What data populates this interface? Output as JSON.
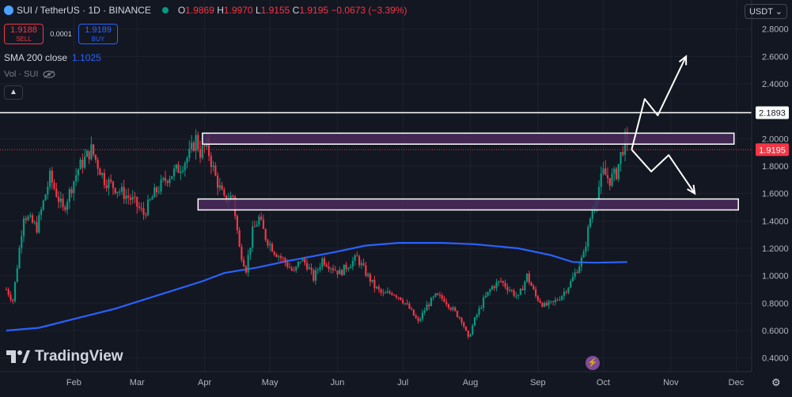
{
  "header": {
    "symbol": "SUI / TetherUS · 1D · BINANCE",
    "open_label": "O",
    "open": "1.9869",
    "high_label": "H",
    "high": "1.9970",
    "low_label": "L",
    "low": "1.9155",
    "close_label": "C",
    "close": "1.9195",
    "change": "−0.0673 (−3.39%)"
  },
  "trade": {
    "sell_price": "1.9188",
    "sell_label": "SELL",
    "spread": "0.0001",
    "buy_price": "1.9189",
    "buy_label": "BUY"
  },
  "indicators": {
    "sma_label": "SMA 200 close",
    "sma_value": "1.1025",
    "vol_label": "Vol · SUI"
  },
  "currency": "USDT",
  "brand": "TradingView",
  "colors": {
    "up": "#089981",
    "down": "#f23645",
    "sma": "#2962ff",
    "zone": "#4a2a5a",
    "bg": "#131722"
  },
  "chart_data": {
    "type": "candlestick",
    "ylim": [
      0.3,
      3.0
    ],
    "y_ticks": [
      "2.8000",
      "2.6000",
      "2.4000",
      "2.2000",
      "2.0000",
      "1.8000",
      "1.6000",
      "1.4000",
      "1.2000",
      "1.0000",
      "0.8000",
      "0.6000",
      "0.4000"
    ],
    "x_ticks": [
      "Feb",
      "Mar",
      "Apr",
      "May",
      "Jun",
      "Jul",
      "Aug",
      "Sep",
      "Oct",
      "Nov",
      "Dec"
    ],
    "x_tick_day": [
      31,
      60,
      91,
      121,
      152,
      182,
      213,
      244,
      274,
      305,
      335
    ],
    "close_path": [
      [
        0,
        0.9
      ],
      [
        3,
        0.82
      ],
      [
        8,
        1.45
      ],
      [
        14,
        1.35
      ],
      [
        20,
        1.72
      ],
      [
        26,
        1.48
      ],
      [
        33,
        1.78
      ],
      [
        39,
        1.92
      ],
      [
        45,
        1.7
      ],
      [
        52,
        1.62
      ],
      [
        58,
        1.55
      ],
      [
        63,
        1.45
      ],
      [
        68,
        1.6
      ],
      [
        74,
        1.72
      ],
      [
        79,
        1.78
      ],
      [
        84,
        1.88
      ],
      [
        87,
        2.0
      ],
      [
        89,
        1.9
      ],
      [
        92,
        1.95
      ],
      [
        96,
        1.72
      ],
      [
        100,
        1.55
      ],
      [
        104,
        1.58
      ],
      [
        107,
        1.2
      ],
      [
        110,
        1.05
      ],
      [
        113,
        1.32
      ],
      [
        116,
        1.42
      ],
      [
        119,
        1.28
      ],
      [
        123,
        1.18
      ],
      [
        128,
        1.1
      ],
      [
        132,
        1.02
      ],
      [
        135,
        1.12
      ],
      [
        138,
        1.08
      ],
      [
        141,
        0.98
      ],
      [
        145,
        1.12
      ],
      [
        149,
        1.07
      ],
      [
        153,
        1.02
      ],
      [
        157,
        1.08
      ],
      [
        161,
        1.13
      ],
      [
        165,
        1.02
      ],
      [
        169,
        0.92
      ],
      [
        173,
        0.86
      ],
      [
        177,
        0.88
      ],
      [
        181,
        0.84
      ],
      [
        185,
        0.76
      ],
      [
        189,
        0.66
      ],
      [
        193,
        0.78
      ],
      [
        197,
        0.85
      ],
      [
        201,
        0.83
      ],
      [
        205,
        0.75
      ],
      [
        209,
        0.68
      ],
      [
        212,
        0.54
      ],
      [
        215,
        0.68
      ],
      [
        219,
        0.82
      ],
      [
        223,
        0.92
      ],
      [
        227,
        0.96
      ],
      [
        231,
        0.9
      ],
      [
        235,
        0.84
      ],
      [
        239,
        1.0
      ],
      [
        243,
        0.85
      ],
      [
        247,
        0.78
      ],
      [
        251,
        0.8
      ],
      [
        255,
        0.86
      ],
      [
        259,
        0.95
      ],
      [
        262,
        1.05
      ],
      [
        265,
        1.15
      ],
      [
        268,
        1.42
      ],
      [
        271,
        1.6
      ],
      [
        274,
        1.75
      ],
      [
        277,
        1.7
      ],
      [
        280,
        1.75
      ],
      [
        282,
        1.88
      ],
      [
        284,
        1.99
      ],
      [
        285,
        1.92
      ]
    ],
    "sma_path": [
      [
        0,
        0.6
      ],
      [
        15,
        0.62
      ],
      [
        30,
        0.68
      ],
      [
        50,
        0.76
      ],
      [
        70,
        0.86
      ],
      [
        90,
        0.96
      ],
      [
        100,
        1.02
      ],
      [
        115,
        1.06
      ],
      [
        130,
        1.11
      ],
      [
        150,
        1.17
      ],
      [
        165,
        1.22
      ],
      [
        180,
        1.24
      ],
      [
        200,
        1.24
      ],
      [
        215,
        1.23
      ],
      [
        235,
        1.2
      ],
      [
        250,
        1.15
      ],
      [
        260,
        1.1
      ],
      [
        270,
        1.095
      ],
      [
        285,
        1.1
      ]
    ],
    "current_price": "1.9195",
    "resistance_price": "2.1893",
    "resistance_level": 2.1893,
    "zones": [
      {
        "name": "upper-zone",
        "start_day": 90,
        "end_day": 334,
        "low": 1.96,
        "high": 2.04
      },
      {
        "name": "lower-zone",
        "start_day": 88,
        "end_day": 336,
        "low": 1.48,
        "high": 1.56
      }
    ],
    "scenario_up": [
      [
        287,
        1.92
      ],
      [
        293,
        2.29
      ],
      [
        299,
        2.17
      ],
      [
        312,
        2.6
      ]
    ],
    "scenario_down": [
      [
        287,
        1.92
      ],
      [
        296,
        1.76
      ],
      [
        304,
        1.88
      ],
      [
        316,
        1.6
      ]
    ]
  }
}
